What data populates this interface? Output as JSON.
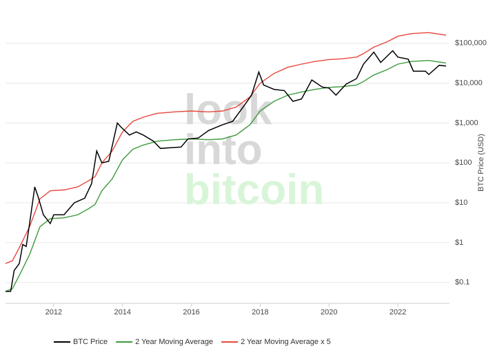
{
  "chart_data": {
    "type": "line",
    "log_scale": true,
    "grid": true,
    "legend": "bottom",
    "y_label": "BTC Price (USD)",
    "watermark": [
      "look",
      "into",
      "bitcoin"
    ],
    "xlim": [
      2010.6,
      2023.5
    ],
    "xticks": [
      2012,
      2014,
      2016,
      2018,
      2020,
      2022
    ],
    "ylim": [
      0.03,
      450000
    ],
    "yticks": [
      {
        "value": 0.1,
        "label": "$0.1"
      },
      {
        "value": 1,
        "label": "$1"
      },
      {
        "value": 10,
        "label": "$10"
      },
      {
        "value": 100,
        "label": "$100"
      },
      {
        "value": 1000,
        "label": "$1,000"
      },
      {
        "value": 10000,
        "label": "$10,000"
      },
      {
        "value": 100000,
        "label": "$100,000"
      }
    ],
    "series": [
      {
        "name": "BTC Price",
        "color": "#000000",
        "x": [
          2010.6,
          2010.75,
          2010.85,
          2011.0,
          2011.1,
          2011.2,
          2011.3,
          2011.45,
          2011.55,
          2011.7,
          2011.9,
          2012.0,
          2012.3,
          2012.6,
          2012.9,
          2013.1,
          2013.25,
          2013.4,
          2013.6,
          2013.85,
          2013.95,
          2014.2,
          2014.4,
          2014.6,
          2014.9,
          2015.1,
          2015.4,
          2015.7,
          2015.9,
          2016.2,
          2016.5,
          2016.9,
          2017.2,
          2017.5,
          2017.75,
          2017.96,
          2018.1,
          2018.4,
          2018.7,
          2018.95,
          2019.2,
          2019.5,
          2019.8,
          2020.0,
          2020.2,
          2020.5,
          2020.8,
          2021.0,
          2021.3,
          2021.5,
          2021.85,
          2022.0,
          2022.3,
          2022.45,
          2022.8,
          2022.9,
          2023.2,
          2023.4
        ],
        "values": [
          0.06,
          0.06,
          0.2,
          0.3,
          0.9,
          0.8,
          3,
          25,
          14,
          5,
          3,
          5,
          5,
          10,
          13,
          30,
          200,
          100,
          110,
          1000,
          800,
          500,
          600,
          500,
          350,
          230,
          240,
          250,
          400,
          420,
          650,
          900,
          1100,
          2500,
          5000,
          19000,
          9000,
          7000,
          6500,
          3500,
          4000,
          12000,
          8000,
          7500,
          5000,
          9500,
          13000,
          30000,
          60000,
          33000,
          65000,
          45000,
          40000,
          20000,
          20000,
          16500,
          28000,
          27000
        ]
      },
      {
        "name": "2 Year Moving Average",
        "color": "#3c9a3c",
        "x": [
          2010.6,
          2010.8,
          2011.0,
          2011.3,
          2011.6,
          2011.9,
          2012.3,
          2012.7,
          2013.0,
          2013.2,
          2013.4,
          2013.7,
          2014.0,
          2014.3,
          2014.6,
          2015.0,
          2015.5,
          2016.0,
          2016.5,
          2016.9,
          2017.3,
          2017.7,
          2018.0,
          2018.4,
          2018.8,
          2019.2,
          2019.6,
          2020.0,
          2020.4,
          2020.8,
          2021.0,
          2021.3,
          2021.7,
          2022.0,
          2022.4,
          2022.9,
          2023.4
        ],
        "values": [
          0.06,
          0.07,
          0.15,
          0.5,
          2.5,
          4,
          4.2,
          5,
          7,
          9,
          20,
          40,
          120,
          220,
          280,
          350,
          380,
          400,
          380,
          400,
          500,
          900,
          2000,
          3500,
          5000,
          6000,
          7000,
          7800,
          8200,
          9000,
          11000,
          16000,
          22000,
          30000,
          35000,
          37000,
          32000
        ]
      },
      {
        "name": "2 Year Moving Average x 5",
        "color": "#e8463c",
        "x": [
          2010.6,
          2010.8,
          2011.0,
          2011.3,
          2011.6,
          2011.9,
          2012.3,
          2012.7,
          2013.0,
          2013.2,
          2013.4,
          2013.7,
          2014.0,
          2014.3,
          2014.6,
          2015.0,
          2015.5,
          2016.0,
          2016.5,
          2016.9,
          2017.3,
          2017.7,
          2018.0,
          2018.4,
          2018.8,
          2019.2,
          2019.6,
          2020.0,
          2020.4,
          2020.8,
          2021.0,
          2021.3,
          2021.7,
          2022.0,
          2022.4,
          2022.9,
          2023.4
        ],
        "values": [
          0.3,
          0.35,
          0.75,
          2.5,
          12.5,
          20,
          21,
          25,
          35,
          45,
          100,
          200,
          600,
          1100,
          1400,
          1750,
          1900,
          2000,
          1900,
          2000,
          2500,
          4500,
          10000,
          17500,
          25000,
          30000,
          35000,
          39000,
          41000,
          45000,
          55000,
          80000,
          110000,
          150000,
          175000,
          185000,
          160000
        ]
      }
    ]
  }
}
